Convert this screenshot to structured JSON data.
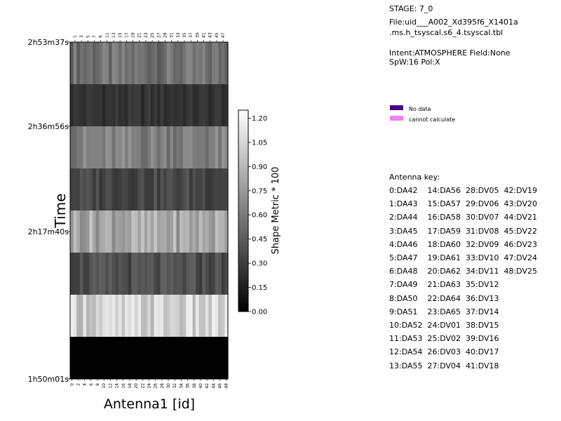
{
  "chart_data": {
    "type": "heatmap",
    "xlabel": "Antenna1 [id]",
    "ylabel": "Time",
    "colorbar_label": "Shape Metric * 100",
    "colorbar_range": [
      0,
      1.25
    ],
    "colorbar_ticks": [
      "0.00",
      "0.15",
      "0.30",
      "0.45",
      "0.60",
      "0.75",
      "0.90",
      "1.05",
      "1.20"
    ],
    "x_bottom_ticks": [
      "0",
      "2",
      "4",
      "6",
      "8",
      "10",
      "12",
      "14",
      "16",
      "18",
      "20",
      "22",
      "24",
      "26",
      "28",
      "30",
      "32",
      "34",
      "36",
      "38",
      "40",
      "42",
      "44",
      "46",
      "48"
    ],
    "x_top_ticks": [
      "1",
      "3",
      "5",
      "7",
      "9",
      "11",
      "13",
      "15",
      "17",
      "19",
      "21",
      "23",
      "25",
      "27",
      "29",
      "31",
      "33",
      "35",
      "37",
      "39",
      "41",
      "43",
      "45",
      "47"
    ],
    "y_tick_labels": [
      "2h53m37s",
      "2h36m56s",
      "2h17m40s",
      "1h50m01s"
    ],
    "n_antennas": 49,
    "row_base_values": [
      0.55,
      0.25,
      0.62,
      0.35,
      0.82,
      0.38,
      1.02,
      0.0
    ],
    "row_amplitudes": [
      0.12,
      0.06,
      0.12,
      0.09,
      0.16,
      0.1,
      0.16,
      0.0
    ]
  },
  "info": {
    "stage": "STAGE: 7_0",
    "file_line1": "File:uid___A002_Xd395f6_X1401a",
    "file_line2": ".ms.h_tsyscal.s6_4.tsyscal.tbl",
    "intent_line1": "Intent:ATMOSPHERE Field:None",
    "intent_line2": "SpW:16 Pol:X"
  },
  "legend": {
    "no_data": "No data",
    "no_data_color": "#4b0080",
    "cannot_calc": "cannot calculate",
    "cannot_calc_color": "#ee82ee"
  },
  "antenna_key": {
    "title": "Antenna key:",
    "lines": [
      "0:DA42    14:DA56  28:DV05  42:DV19",
      "1:DA43    15:DA57  29:DV06  43:DV20",
      "2:DA44    16:DA58  30:DV07  44:DV21",
      "3:DA45    17:DA59  31:DV08  45:DV22",
      "4:DA46    18:DA60  32:DV09  46:DV23",
      "5:DA47    19:DA61  33:DV10  47:DV24",
      "6:DA48    20:DA62  34:DV11  48:DV25",
      "7:DA49    21:DA63  35:DV12",
      "8:DA50    22:DA64  36:DV13",
      "9:DA51    23:DA65  37:DV14",
      "10:DA52  24:DV01  38:DV15",
      "11:DA53  25:DV02  39:DV16",
      "12:DA54  26:DV03  40:DV17",
      "13:DA55  27:DV04  41:DV18"
    ]
  }
}
